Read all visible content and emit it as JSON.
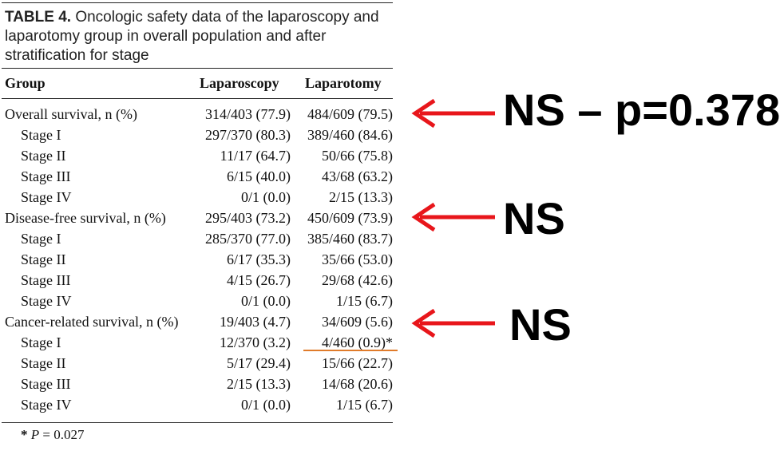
{
  "table": {
    "title_lead": "TABLE 4.",
    "title_rest": " Oncologic safety data of the laparoscopy and laparotomy group in overall population and after stratification for stage",
    "headers": {
      "group": "Group",
      "laparoscopy": "Laparoscopy",
      "laparotomy": "Laparotomy"
    },
    "rows": [
      {
        "label": "Overall survival, n (%)",
        "lap": "314/403 (77.9)",
        "lpt": "484/609 (79.5)"
      },
      {
        "label": "Stage I",
        "lap": "297/370 (80.3)",
        "lpt": "389/460 (84.6)"
      },
      {
        "label": "Stage II",
        "lap": "11/17 (64.7)",
        "lpt": "50/66 (75.8)"
      },
      {
        "label": "Stage III",
        "lap": "6/15 (40.0)",
        "lpt": "43/68 (63.2)"
      },
      {
        "label": "Stage IV",
        "lap": "0/1 (0.0)",
        "lpt": "2/15 (13.3)"
      },
      {
        "label": "Disease-free survival, n (%)",
        "lap": "295/403 (73.2)",
        "lpt": "450/609 (73.9)"
      },
      {
        "label": "Stage I",
        "lap": "285/370 (77.0)",
        "lpt": "385/460 (83.7)"
      },
      {
        "label": "Stage II",
        "lap": "6/17 (35.3)",
        "lpt": "35/66 (53.0)"
      },
      {
        "label": "Stage III",
        "lap": "4/15 (26.7)",
        "lpt": "29/68 (42.6)"
      },
      {
        "label": "Stage IV",
        "lap": "0/1 (0.0)",
        "lpt": "1/15 (6.7)"
      },
      {
        "label": "Cancer-related survival, n (%)",
        "lap": "19/403 (4.7)",
        "lpt": "34/609 (5.6)"
      },
      {
        "label": "Stage I",
        "lap": "12/370 (3.2)",
        "lpt": "4/460 (0.9)*"
      },
      {
        "label": "Stage II",
        "lap": "5/17 (29.4)",
        "lpt": "15/66 (22.7)"
      },
      {
        "label": "Stage III",
        "lap": "2/15 (13.3)",
        "lpt": "14/68 (20.6)"
      },
      {
        "label": "Stage IV",
        "lap": "0/1 (0.0)",
        "lpt": "1/15 (6.7)"
      }
    ],
    "footnote": {
      "star": "*",
      "p": "P",
      "rest": " = 0.027"
    }
  },
  "annotations": [
    {
      "text": "NS – p=0.378"
    },
    {
      "text": "NS"
    },
    {
      "text": "NS"
    }
  ],
  "colors": {
    "arrow": "#e8161b",
    "underline": "#e07b2a"
  }
}
